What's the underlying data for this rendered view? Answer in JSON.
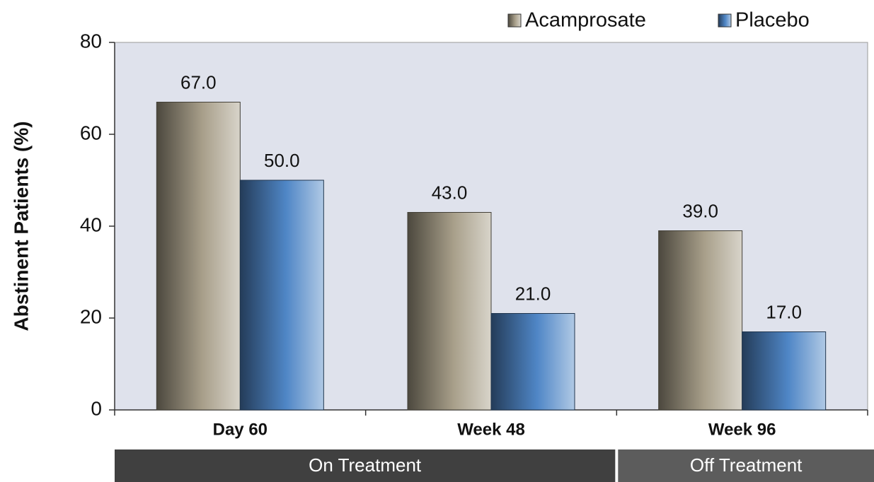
{
  "chart_data": {
    "type": "bar",
    "y_label": "Abstinent Patients (%)",
    "categories": [
      "Day 60",
      "Week 48",
      "Week 96"
    ],
    "group_labels": [
      "On Treatment",
      "Off Treatment"
    ],
    "series": [
      {
        "name": "Acamprosate",
        "color": "#a89f8a",
        "values": [
          67,
          43,
          39
        ],
        "value_labels": [
          "67.0",
          "43.0",
          "39.0"
        ]
      },
      {
        "name": "Placebo",
        "color": "#4f86c6",
        "values": [
          50,
          21,
          17
        ],
        "value_labels": [
          "50.0",
          "21.0",
          "17.0"
        ]
      }
    ],
    "ylim": [
      0,
      80
    ],
    "yticks": [
      0,
      20,
      40,
      60,
      80
    ],
    "grid": false,
    "legend": "top-right"
  }
}
